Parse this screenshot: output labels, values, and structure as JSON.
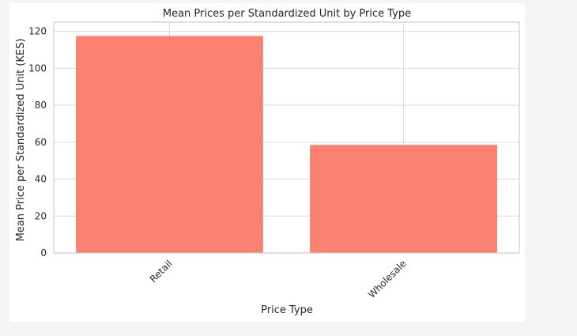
{
  "chart_data": {
    "type": "bar",
    "title": "Mean Prices per Standardized Unit by Price Type",
    "xlabel": "Price Type",
    "ylabel": "Mean Price per Standardized Unit (KES)",
    "categories": [
      "Retail",
      "Wholesale"
    ],
    "values": [
      117.5,
      58.5
    ],
    "ylim": [
      0,
      125
    ],
    "yticks": [
      0,
      20,
      40,
      60,
      80,
      100,
      120
    ],
    "grid": true,
    "bar_color": "#fa8072",
    "grid_color": "#d9d9d9",
    "axes_edge_color": "#cccccc"
  }
}
